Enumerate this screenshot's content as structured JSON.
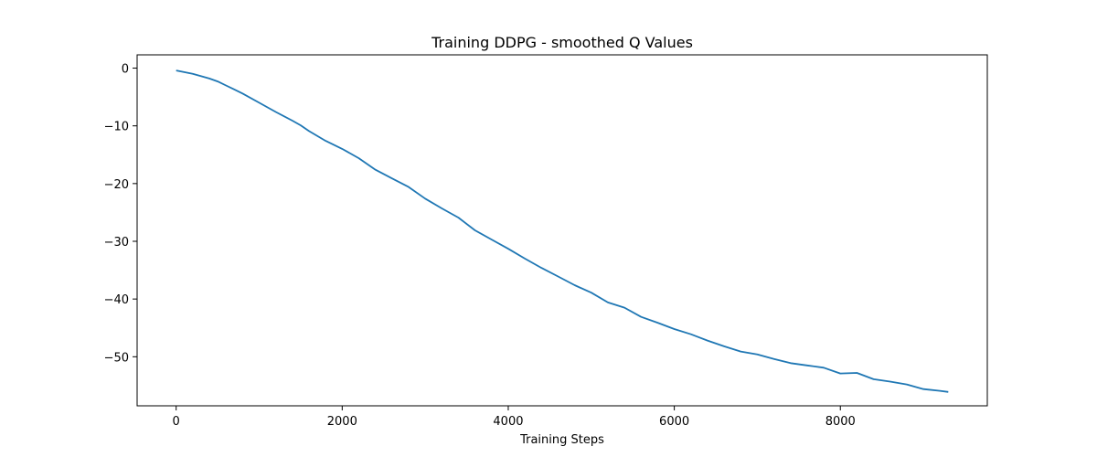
{
  "chart_data": {
    "type": "line",
    "title": "Training DDPG - smoothed Q Values",
    "xlabel": "Training Steps",
    "ylabel": "",
    "xlim": [
      -470,
      9770
    ],
    "ylim": [
      -58.5,
      2.3
    ],
    "xticks": [
      0,
      2000,
      4000,
      6000,
      8000
    ],
    "xtick_labels": [
      "0",
      "2000",
      "4000",
      "6000",
      "8000"
    ],
    "yticks": [
      0,
      -10,
      -20,
      -30,
      -40,
      -50
    ],
    "ytick_labels": [
      "0",
      "−10",
      "−20",
      "−30",
      "−40",
      "−50"
    ],
    "grid": false,
    "series": [
      {
        "color": "#1f77b4",
        "x": [
          0,
          200,
          400,
          500,
          600,
          800,
          1000,
          1200,
          1400,
          1500,
          1600,
          1800,
          2000,
          2200,
          2400,
          2600,
          2800,
          3000,
          3200,
          3400,
          3600,
          3800,
          4000,
          4200,
          4400,
          4600,
          4800,
          5000,
          5200,
          5400,
          5600,
          5800,
          6000,
          6200,
          6400,
          6600,
          6800,
          7000,
          7200,
          7400,
          7600,
          7800,
          8000,
          8200,
          8400,
          8600,
          8800,
          9000,
          9200,
          9300
        ],
        "y": [
          -0.4,
          -1.0,
          -1.8,
          -2.3,
          -3.0,
          -4.4,
          -6.0,
          -7.6,
          -9.1,
          -9.9,
          -10.9,
          -12.6,
          -14.0,
          -15.6,
          -17.6,
          -19.1,
          -20.6,
          -22.6,
          -24.3,
          -25.9,
          -28.1,
          -29.7,
          -31.3,
          -33.0,
          -34.6,
          -36.1,
          -37.6,
          -38.9,
          -40.6,
          -41.5,
          -43.1,
          -44.1,
          -45.2,
          -46.1,
          -47.2,
          -48.2,
          -49.1,
          -49.6,
          -50.4,
          -51.1,
          -51.5,
          -51.9,
          -52.9,
          -52.8,
          -53.9,
          -54.3,
          -54.8,
          -55.6,
          -55.9,
          -56.1
        ]
      }
    ]
  }
}
